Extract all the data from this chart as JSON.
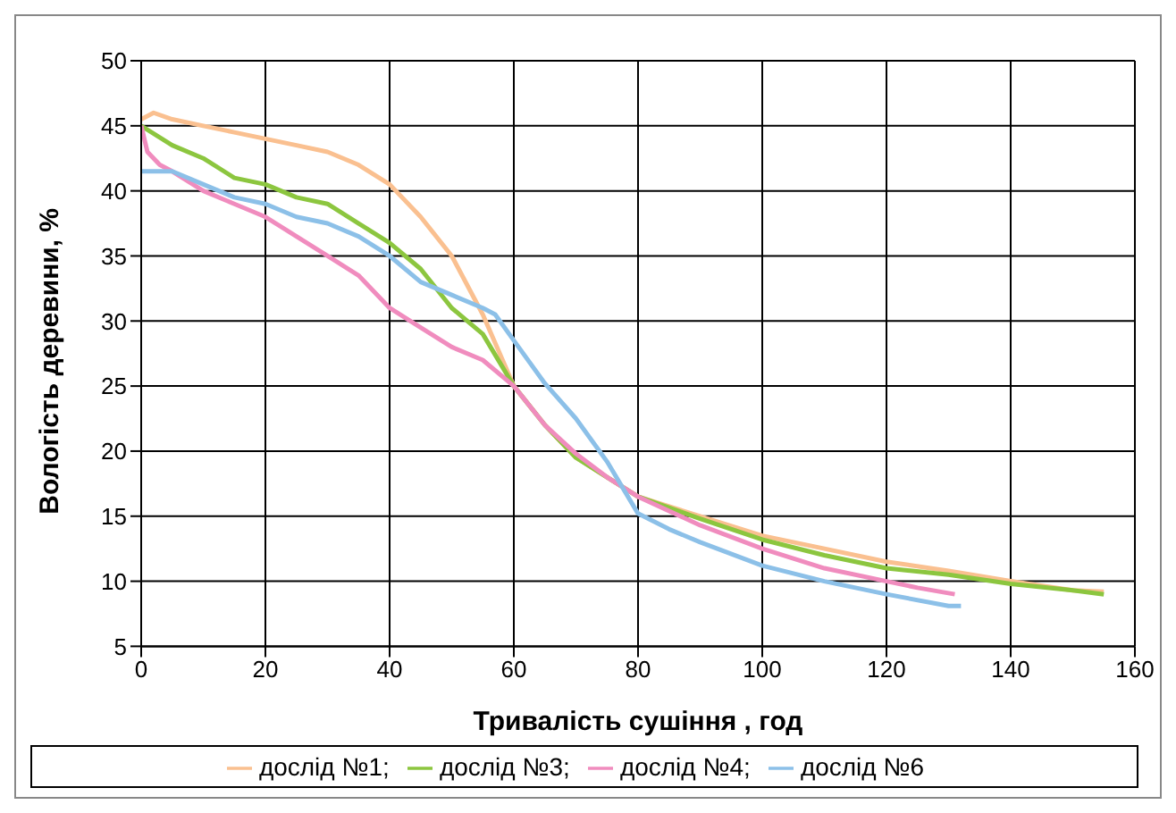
{
  "chart_data": {
    "type": "line",
    "xlabel": "Тривалість сушіння , год",
    "ylabel": "Вологість деревини, %",
    "xlim": [
      0,
      160
    ],
    "xticks": [
      0,
      20,
      40,
      60,
      80,
      100,
      120,
      140,
      160
    ],
    "ylim": [
      5,
      50
    ],
    "yticks": [
      5,
      10,
      15,
      20,
      25,
      30,
      35,
      40,
      45,
      50
    ],
    "grid": true,
    "legend": "bottom",
    "marker": "none",
    "line_style": "solid",
    "series": [
      {
        "name": "дослід №1;",
        "color": "#fac090",
        "x": [
          0,
          2,
          5,
          10,
          15,
          20,
          25,
          30,
          35,
          40,
          45,
          50,
          55,
          60,
          65,
          70,
          75,
          80,
          90,
          100,
          110,
          120,
          130,
          140,
          150,
          155
        ],
        "values": [
          45.5,
          46,
          45.5,
          45,
          44.5,
          44,
          43.5,
          43,
          42,
          40.5,
          38,
          35,
          30.5,
          25,
          22,
          19.5,
          18,
          16.5,
          15,
          13.5,
          12.5,
          11.5,
          10.8,
          10,
          9.3,
          9.2
        ]
      },
      {
        "name": "дослід №3;",
        "color": "#8cc63f",
        "x": [
          0,
          5,
          10,
          15,
          20,
          25,
          30,
          35,
          40,
          45,
          50,
          55,
          60,
          65,
          70,
          75,
          80,
          90,
          100,
          110,
          120,
          130,
          140,
          150,
          155
        ],
        "values": [
          45,
          43.5,
          42.5,
          41,
          40.5,
          39.5,
          39,
          37.5,
          36,
          34,
          31,
          29,
          25,
          22,
          19.5,
          18,
          16.5,
          14.8,
          13.2,
          12,
          11,
          10.5,
          9.8,
          9.3,
          9
        ]
      },
      {
        "name": "дослід №4;",
        "color": "#f08cbe",
        "x": [
          0,
          1,
          3,
          5,
          10,
          15,
          20,
          25,
          30,
          35,
          40,
          45,
          50,
          55,
          60,
          65,
          70,
          75,
          80,
          90,
          100,
          110,
          120,
          125,
          131
        ],
        "values": [
          45,
          43,
          42,
          41.5,
          40,
          39,
          38,
          36.5,
          35,
          33.5,
          31,
          29.5,
          28,
          27,
          25,
          22,
          19.8,
          18,
          16.5,
          14.3,
          12.5,
          11,
          10,
          9.5,
          9
        ]
      },
      {
        "name": "дослід №6",
        "color": "#8cc0e8",
        "x": [
          0,
          5,
          10,
          15,
          20,
          25,
          30,
          35,
          40,
          45,
          50,
          55,
          57,
          60,
          65,
          70,
          75,
          80,
          85,
          90,
          100,
          110,
          120,
          130,
          132
        ],
        "values": [
          41.5,
          41.5,
          40.5,
          39.5,
          39,
          38,
          37.5,
          36.5,
          35,
          33,
          32,
          31,
          30.5,
          28.5,
          25.2,
          22.5,
          19.2,
          15.2,
          14,
          13,
          11.2,
          10,
          9,
          8.1,
          8.1
        ]
      }
    ]
  }
}
